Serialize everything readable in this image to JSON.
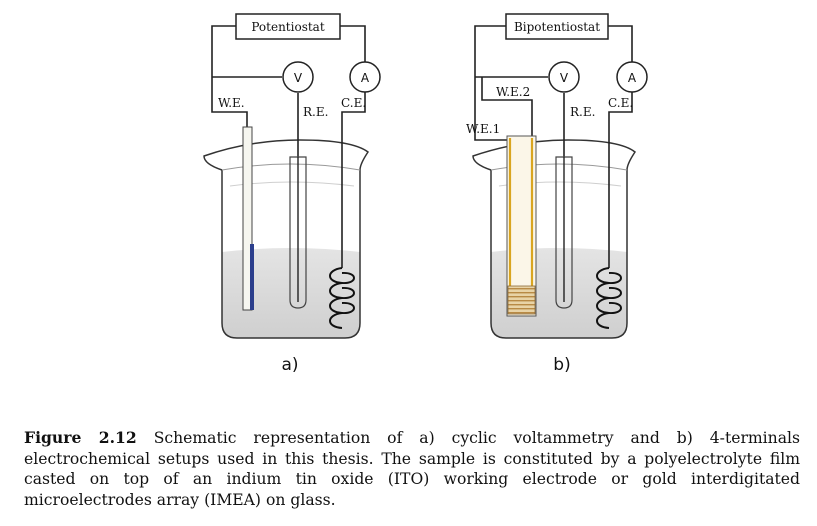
{
  "panel_a": {
    "instrument": "Potentiostat",
    "voltmeter": "V",
    "ammeter": "A",
    "we_label": "W.E.",
    "re_label": "R.E.",
    "ce_label": "C.E.",
    "sublabel": "a)",
    "colors": {
      "working_electrode": "#2b3e8c"
    }
  },
  "panel_b": {
    "instrument": "Bipotentiostat",
    "voltmeter": "V",
    "ammeter": "A",
    "we1_label": "W.E.1",
    "we2_label": "W.E.2",
    "re_label": "R.E.",
    "ce_label": "C.E.",
    "sublabel": "b)",
    "colors": {
      "gold_electrode": "#d9a520",
      "imea": "#c9a46a"
    }
  },
  "caption": {
    "label": "Figure 2.12",
    "text": " Schematic representation of a) cyclic voltammetry and b) 4-terminals electrochemical setups used in this thesis. The sample is constituted by a polyelectrolyte film casted on top of an indium tin oxide (ITO) working electrode or gold interdigitated microelectrodes array (IMEA) on glass."
  }
}
